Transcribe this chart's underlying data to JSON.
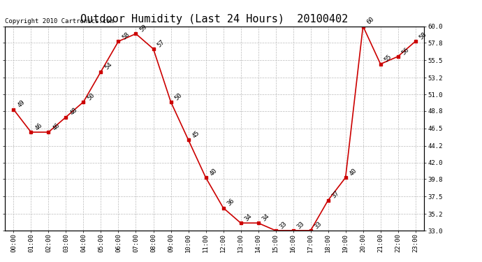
{
  "title": "Outdoor Humidity (Last 24 Hours)  20100402",
  "copyright": "Copyright 2010 Cartronics.com",
  "hours": [
    0,
    1,
    2,
    3,
    4,
    5,
    6,
    7,
    8,
    9,
    10,
    11,
    12,
    13,
    14,
    15,
    16,
    17,
    18,
    19,
    20,
    21,
    22,
    23
  ],
  "values": [
    49,
    46,
    46,
    48,
    50,
    54,
    58,
    59,
    57,
    50,
    45,
    40,
    36,
    34,
    34,
    33,
    33,
    33,
    37,
    40,
    60,
    55,
    56,
    58
  ],
  "xlabels": [
    "00:00",
    "01:00",
    "02:00",
    "03:00",
    "04:00",
    "05:00",
    "06:00",
    "07:00",
    "08:00",
    "09:00",
    "10:00",
    "11:00",
    "12:00",
    "13:00",
    "14:00",
    "15:00",
    "16:00",
    "17:00",
    "18:00",
    "19:00",
    "20:00",
    "21:00",
    "22:00",
    "23:00"
  ],
  "ylim": [
    33.0,
    60.0
  ],
  "yticks_right": [
    33.0,
    35.2,
    37.5,
    39.8,
    42.0,
    44.2,
    46.5,
    48.8,
    51.0,
    53.2,
    55.5,
    57.8,
    60.0
  ],
  "line_color": "#cc0000",
  "marker_color": "#cc0000",
  "bg_color": "#ffffff",
  "grid_color": "#bbbbbb",
  "title_fontsize": 11,
  "label_fontsize": 6.5,
  "annot_fontsize": 6.5,
  "copyright_fontsize": 6.5
}
